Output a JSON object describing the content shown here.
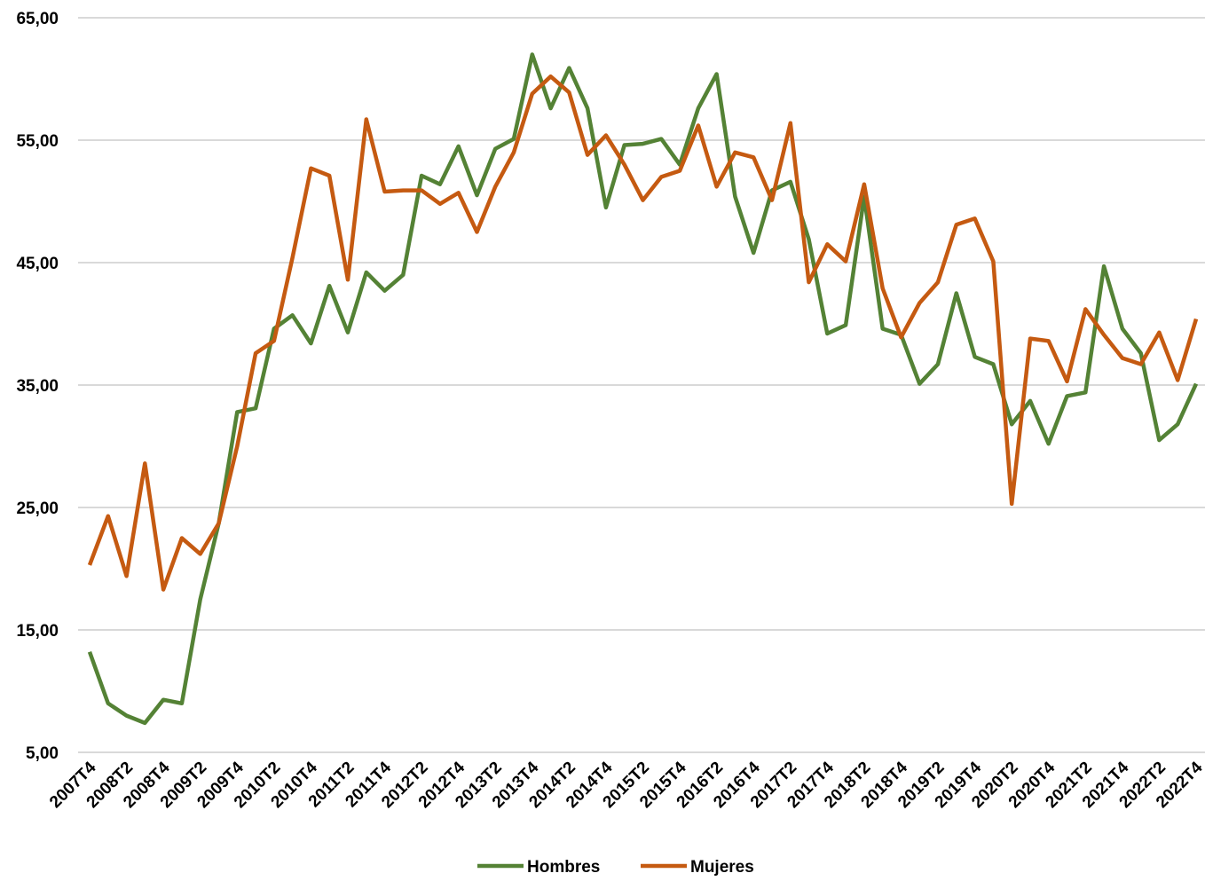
{
  "chart_data": {
    "type": "line",
    "categories": [
      "2007T4",
      null,
      "2008T2",
      null,
      "2008T4",
      null,
      "2009T2",
      null,
      "2009T4",
      null,
      "2010T2",
      null,
      "2010T4",
      null,
      "2011T2",
      null,
      "2011T4",
      null,
      "2012T2",
      null,
      "2012T4",
      null,
      "2013T2",
      null,
      "2013T4",
      null,
      "2014T2",
      null,
      "2014T4",
      null,
      "2015T2",
      null,
      "2015T4",
      null,
      "2016T2",
      null,
      "2016T4",
      null,
      "2017T2",
      null,
      "2017T4",
      null,
      "2018T2",
      null,
      "2018T4",
      null,
      "2019T2",
      null,
      "2019T4",
      null,
      "2020T2",
      null,
      "2020T4",
      null,
      "2021T2",
      null,
      "2021T4",
      null,
      "2022T2",
      null,
      "2022T4"
    ],
    "series": [
      {
        "name": "Hombres",
        "color": "#548235",
        "values": [
          13.2,
          9.0,
          8.0,
          7.4,
          9.3,
          9.0,
          17.5,
          23.7,
          32.8,
          33.1,
          39.6,
          40.7,
          38.4,
          43.1,
          39.3,
          44.2,
          42.7,
          44.0,
          52.1,
          51.4,
          54.5,
          50.5,
          54.3,
          55.1,
          62.0,
          57.6,
          60.9,
          57.6,
          49.5,
          54.6,
          54.7,
          55.1,
          53.0,
          57.6,
          60.4,
          50.4,
          45.8,
          50.9,
          51.6,
          46.9,
          39.2,
          39.9,
          50.4,
          39.6,
          39.1,
          35.1,
          36.7,
          42.5,
          37.3,
          36.7,
          31.8,
          33.7,
          30.2,
          34.1,
          34.4,
          44.7,
          39.6,
          37.6,
          30.5,
          31.8,
          35.1
        ]
      },
      {
        "name": "Mujeres",
        "color": "#c55a11",
        "values": [
          20.3,
          24.3,
          19.4,
          28.6,
          18.3,
          22.5,
          21.2,
          23.7,
          30.0,
          37.6,
          38.6,
          45.4,
          52.7,
          52.1,
          43.6,
          56.7,
          50.8,
          50.9,
          50.9,
          49.8,
          50.7,
          47.5,
          51.2,
          54.0,
          58.8,
          60.2,
          58.9,
          53.8,
          55.4,
          53.0,
          50.1,
          52.0,
          52.5,
          56.2,
          51.2,
          54.0,
          53.6,
          50.1,
          56.4,
          43.4,
          46.5,
          45.1,
          51.4,
          42.9,
          38.9,
          41.7,
          43.4,
          48.1,
          48.6,
          45.1,
          25.3,
          38.8,
          38.6,
          35.3,
          41.2,
          39.1,
          37.2,
          36.7,
          39.3,
          35.4,
          40.4
        ]
      }
    ],
    "ylim": [
      5,
      65
    ],
    "yticks": [
      {
        "value": 5,
        "label": "5,00"
      },
      {
        "value": 15,
        "label": "15,00"
      },
      {
        "value": 25,
        "label": "25,00"
      },
      {
        "value": 35,
        "label": "35,00"
      },
      {
        "value": 45,
        "label": "45,00"
      },
      {
        "value": 55,
        "label": "55,00"
      },
      {
        "value": 65,
        "label": "65,00"
      }
    ],
    "grid": true,
    "legend": "bottom"
  }
}
